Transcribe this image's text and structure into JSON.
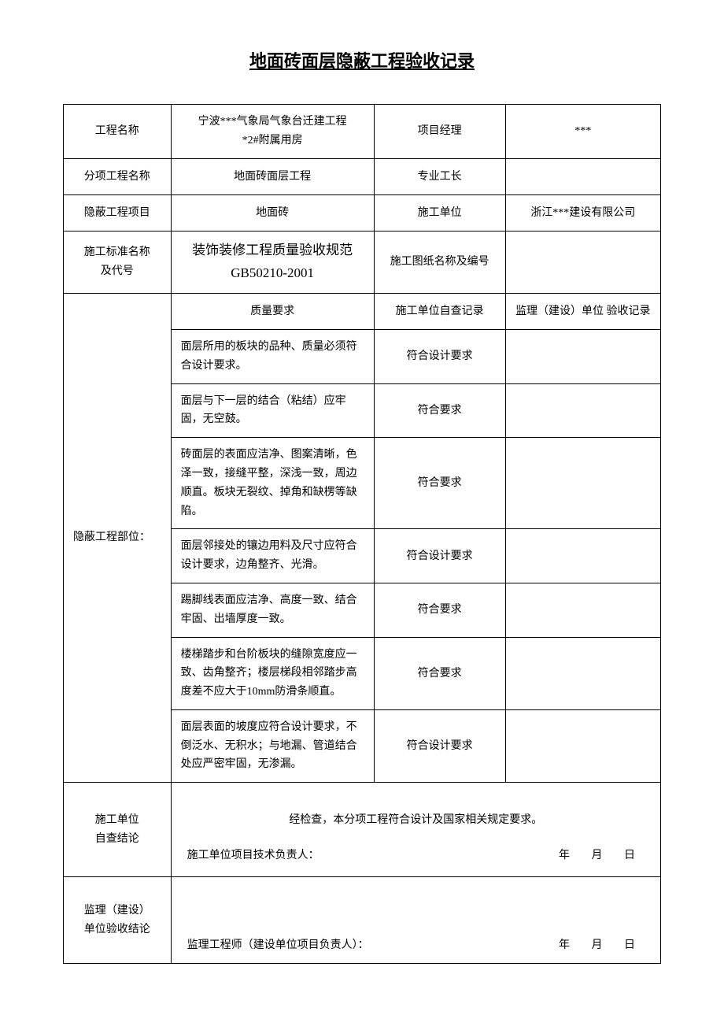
{
  "title": "地面砖面层隐蔽工程验收记录",
  "header": {
    "row1": {
      "label1": "工程名称",
      "value1": "宁波***气象局气象台迁建工程\n*2#附属用房",
      "label2": "项目经理",
      "value2": "***"
    },
    "row2": {
      "label1": "分项工程名称",
      "value1": "地面砖面层工程",
      "label2": "专业工长",
      "value2": ""
    },
    "row3": {
      "label1": "隐蔽工程项目",
      "value1": "地面砖",
      "label2": "施工单位",
      "value2": "浙江***建设有限公司"
    },
    "row4": {
      "label1": "施工标准名称\n及代号",
      "value1": "装饰装修工程质量验收规范\nGB50210-2001",
      "label2": "施工图纸名称及编号",
      "value2": ""
    }
  },
  "subheader": {
    "col2": "质量要求",
    "col3": "施工单位自查记录",
    "col4": "监理（建设）单位 验收记录"
  },
  "part_label": "隐蔽工程部位：",
  "quality_rows": [
    {
      "req": "面层所用的板块的品种、质量必须符合设计要求。",
      "check": "符合设计要求",
      "supv": ""
    },
    {
      "req": "面层与下一层的结合（粘结）应牢固，无空鼓。",
      "check": "符合要求",
      "supv": ""
    },
    {
      "req": "砖面层的表面应洁净、图案清晰，色泽一致，接缝平整，深浅一致，周边顺直。板块无裂纹、掉角和缺楞等缺陷。",
      "check": "符合要求",
      "supv": ""
    },
    {
      "req": "面层邻接处的镶边用料及尺寸应符合设计要求，边角整齐、光滑。",
      "check": "符合设计要求",
      "supv": ""
    },
    {
      "req": "踢脚线表面应洁净、高度一致、结合牢固、出墙厚度一致。",
      "check": "符合要求",
      "supv": ""
    },
    {
      "req": "楼梯踏步和台阶板块的缝隙宽度应一致、齿角整齐；楼层梯段相邻踏步高度差不应大于10mm防滑条顺直。",
      "check": "符合要求",
      "supv": ""
    },
    {
      "req": "面层表面的坡度应符合设计要求，不倒泛水、无积水；与地漏、管道结合处应严密牢固，无渗漏。",
      "check": "符合设计要求",
      "supv": ""
    }
  ],
  "conclusion1": {
    "label": "施工单位\n自查结论",
    "text": "经检查，本分项工程符合设计及国家相关规定要求。",
    "signer": "施工单位项目技术负责人：",
    "year": "年",
    "month": "月",
    "day": "日"
  },
  "conclusion2": {
    "label": "监理（建设）\n单位验收结论",
    "signer": "监理工程师（建设单位项目负责人）：",
    "year": "年",
    "month": "月",
    "day": "日"
  }
}
